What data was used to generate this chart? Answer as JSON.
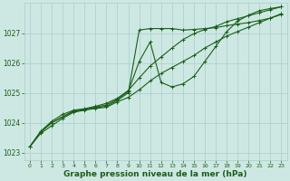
{
  "x": [
    0,
    1,
    2,
    3,
    4,
    5,
    6,
    7,
    8,
    9,
    10,
    11,
    12,
    13,
    14,
    15,
    16,
    17,
    18,
    19,
    20,
    21,
    22,
    23
  ],
  "series1": [
    1023.2,
    1023.65,
    1023.9,
    1024.15,
    1024.35,
    1024.42,
    1024.48,
    1024.52,
    1024.7,
    1024.85,
    1025.1,
    1025.4,
    1025.65,
    1025.85,
    1026.05,
    1026.25,
    1026.5,
    1026.7,
    1026.9,
    1027.05,
    1027.2,
    1027.35,
    1027.5,
    1027.65
  ],
  "series2": [
    1023.2,
    1023.7,
    1024.0,
    1024.2,
    1024.38,
    1024.45,
    1024.52,
    1024.6,
    1024.78,
    1025.05,
    1026.05,
    1026.7,
    1025.35,
    1025.2,
    1025.3,
    1025.55,
    1026.05,
    1026.55,
    1027.05,
    1027.4,
    1027.6,
    1027.75,
    1027.82,
    1027.88
  ],
  "series3": [
    1023.2,
    1023.72,
    1024.05,
    1024.28,
    1024.42,
    1024.47,
    1024.55,
    1024.65,
    1024.82,
    1025.08,
    1025.5,
    1025.9,
    1026.2,
    1026.5,
    1026.78,
    1026.98,
    1027.12,
    1027.22,
    1027.38,
    1027.48,
    1027.58,
    1027.68,
    1027.78,
    1027.88
  ],
  "series4": [
    1023.2,
    1023.7,
    1024.0,
    1024.2,
    1024.4,
    1024.45,
    1024.5,
    1024.55,
    1024.75,
    1025.0,
    1027.1,
    1027.15,
    1027.15,
    1027.15,
    1027.1,
    1027.12,
    1027.15,
    1027.18,
    1027.25,
    1027.3,
    1027.35,
    1027.42,
    1027.5,
    1027.62
  ],
  "bg_color": "#cde8e2",
  "grid_color": "#aacccc",
  "line_color": "#1a5e1a",
  "xlabel": "Graphe pression niveau de la mer (hPa)",
  "ylim": [
    1022.75,
    1028.0
  ],
  "xlim": [
    -0.5,
    23.5
  ],
  "yticks": [
    1023,
    1024,
    1025,
    1026,
    1027
  ],
  "xticks": [
    0,
    1,
    2,
    3,
    4,
    5,
    6,
    7,
    8,
    9,
    10,
    11,
    12,
    13,
    14,
    15,
    16,
    17,
    18,
    19,
    20,
    21,
    22,
    23
  ]
}
